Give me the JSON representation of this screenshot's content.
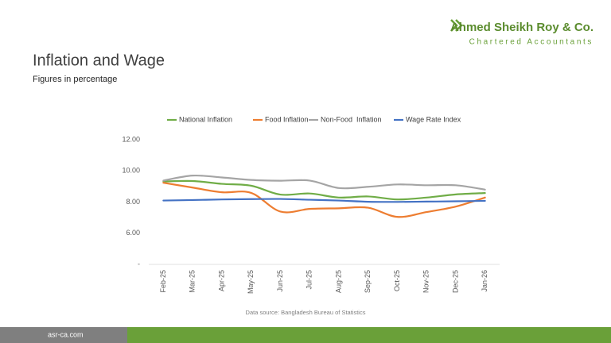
{
  "logo": {
    "name": "Ahmed Sheikh Roy & Co.",
    "tagline": "Chartered Accountants"
  },
  "footer": {
    "website": "asr-ca.com"
  },
  "chart_data": {
    "type": "line",
    "title": "Inflation and Wage",
    "subtitle": "Figures in percentage",
    "source": "Data source: Bangladesh Bureau of Statistics",
    "categories": [
      "Feb-25",
      "Mar-25",
      "Apr-25",
      "May-25",
      "Jun-25",
      "Jul-25",
      "Aug-25",
      "Sep-25",
      "Oct-25",
      "Nov-25",
      "Dec-25",
      "Jan-26"
    ],
    "series": [
      {
        "name": "National Inflation",
        "color": "#70ad47",
        "values": [
          9.32,
          9.35,
          9.17,
          9.05,
          8.48,
          8.55,
          8.29,
          8.36,
          8.17,
          8.29,
          8.49,
          8.58
        ]
      },
      {
        "name": "Food Inflation",
        "color": "#ed7d31",
        "values": [
          9.24,
          8.93,
          8.63,
          8.59,
          7.39,
          7.56,
          7.6,
          7.64,
          7.05,
          7.36,
          7.71,
          8.29
        ]
      },
      {
        "name": "Non-Food  Inflation",
        "color": "#a5a5a5",
        "values": [
          9.38,
          9.7,
          9.58,
          9.42,
          9.37,
          9.38,
          8.9,
          8.98,
          9.13,
          9.08,
          9.08,
          8.8
        ]
      },
      {
        "name": "Wage Rate Index",
        "color": "#4472c4",
        "values": [
          8.1,
          8.13,
          8.17,
          8.19,
          8.2,
          8.15,
          8.1,
          8.02,
          8.01,
          8.03,
          8.05,
          8.08
        ]
      }
    ],
    "ylim": [
      4,
      12
    ],
    "yticks": [
      {
        "value": 4,
        "label": "-"
      },
      {
        "value": 6,
        "label": "6.00"
      },
      {
        "value": 8,
        "label": "8.00"
      },
      {
        "value": 10,
        "label": "10.00"
      },
      {
        "value": 12,
        "label": "12.00"
      }
    ],
    "grid": false,
    "legend": "top"
  }
}
